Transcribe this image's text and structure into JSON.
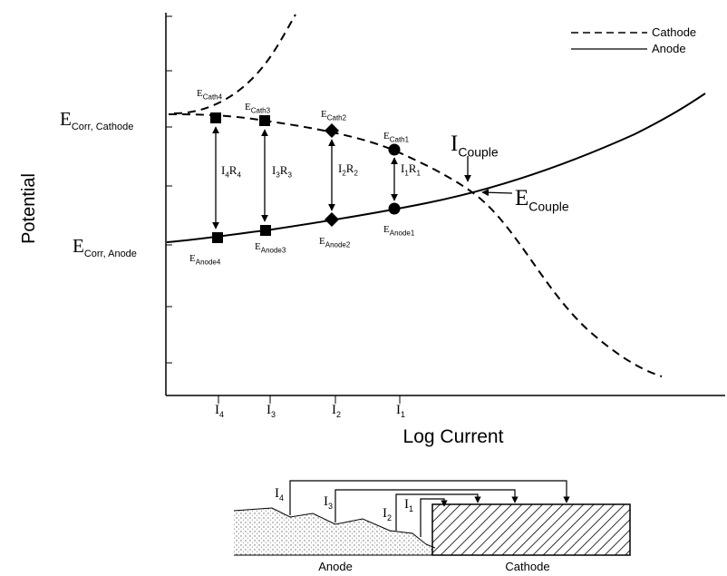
{
  "legend": [
    {
      "label": "Cathode"
    },
    {
      "label": "Anode"
    }
  ],
  "axes": {
    "y_label": "Potential",
    "x_label": "Log Current"
  },
  "levels": {
    "corr_cathode": {
      "symbol": "E",
      "sub": "Corr, Cathode"
    },
    "corr_anode": {
      "symbol": "E",
      "sub": "Corr, Anode"
    }
  },
  "couple": {
    "current": {
      "symbol": "I",
      "sub": "Couple"
    },
    "potential": {
      "symbol": "E",
      "sub": "Couple"
    }
  },
  "points": [
    {
      "cathode": {
        "symbol": "E",
        "sub": "Cath4"
      },
      "anode": {
        "symbol": "E",
        "sub": "Anode4"
      },
      "drop": [
        {
          "symbol": "I",
          "sub": "4"
        },
        {
          "symbol": "R",
          "sub": "4"
        }
      ],
      "current": {
        "symbol": "I",
        "sub": "4"
      }
    },
    {
      "cathode": {
        "symbol": "E",
        "sub": "Cath3"
      },
      "anode": {
        "symbol": "E",
        "sub": "Anode3"
      },
      "drop": [
        {
          "symbol": "I",
          "sub": "3"
        },
        {
          "symbol": "R",
          "sub": "3"
        }
      ],
      "current": {
        "symbol": "I",
        "sub": "3"
      }
    },
    {
      "cathode": {
        "symbol": "E",
        "sub": "Cath2"
      },
      "anode": {
        "symbol": "E",
        "sub": "Anode2"
      },
      "drop": [
        {
          "symbol": "I",
          "sub": "2"
        },
        {
          "symbol": "R",
          "sub": "2"
        }
      ],
      "current": {
        "symbol": "I",
        "sub": "2"
      }
    },
    {
      "cathode": {
        "symbol": "E",
        "sub": "Cath1"
      },
      "anode": {
        "symbol": "E",
        "sub": "Anode1"
      },
      "drop": [
        {
          "symbol": "I",
          "sub": "1"
        },
        {
          "symbol": "R",
          "sub": "1"
        }
      ],
      "current": {
        "symbol": "I",
        "sub": "1"
      }
    }
  ],
  "cell": {
    "currents": [
      {
        "symbol": "I",
        "sub": "4"
      },
      {
        "symbol": "I",
        "sub": "3"
      },
      {
        "symbol": "I",
        "sub": "2"
      },
      {
        "symbol": "I",
        "sub": "1"
      }
    ],
    "anode": "Anode",
    "cathode": "Cathode"
  }
}
